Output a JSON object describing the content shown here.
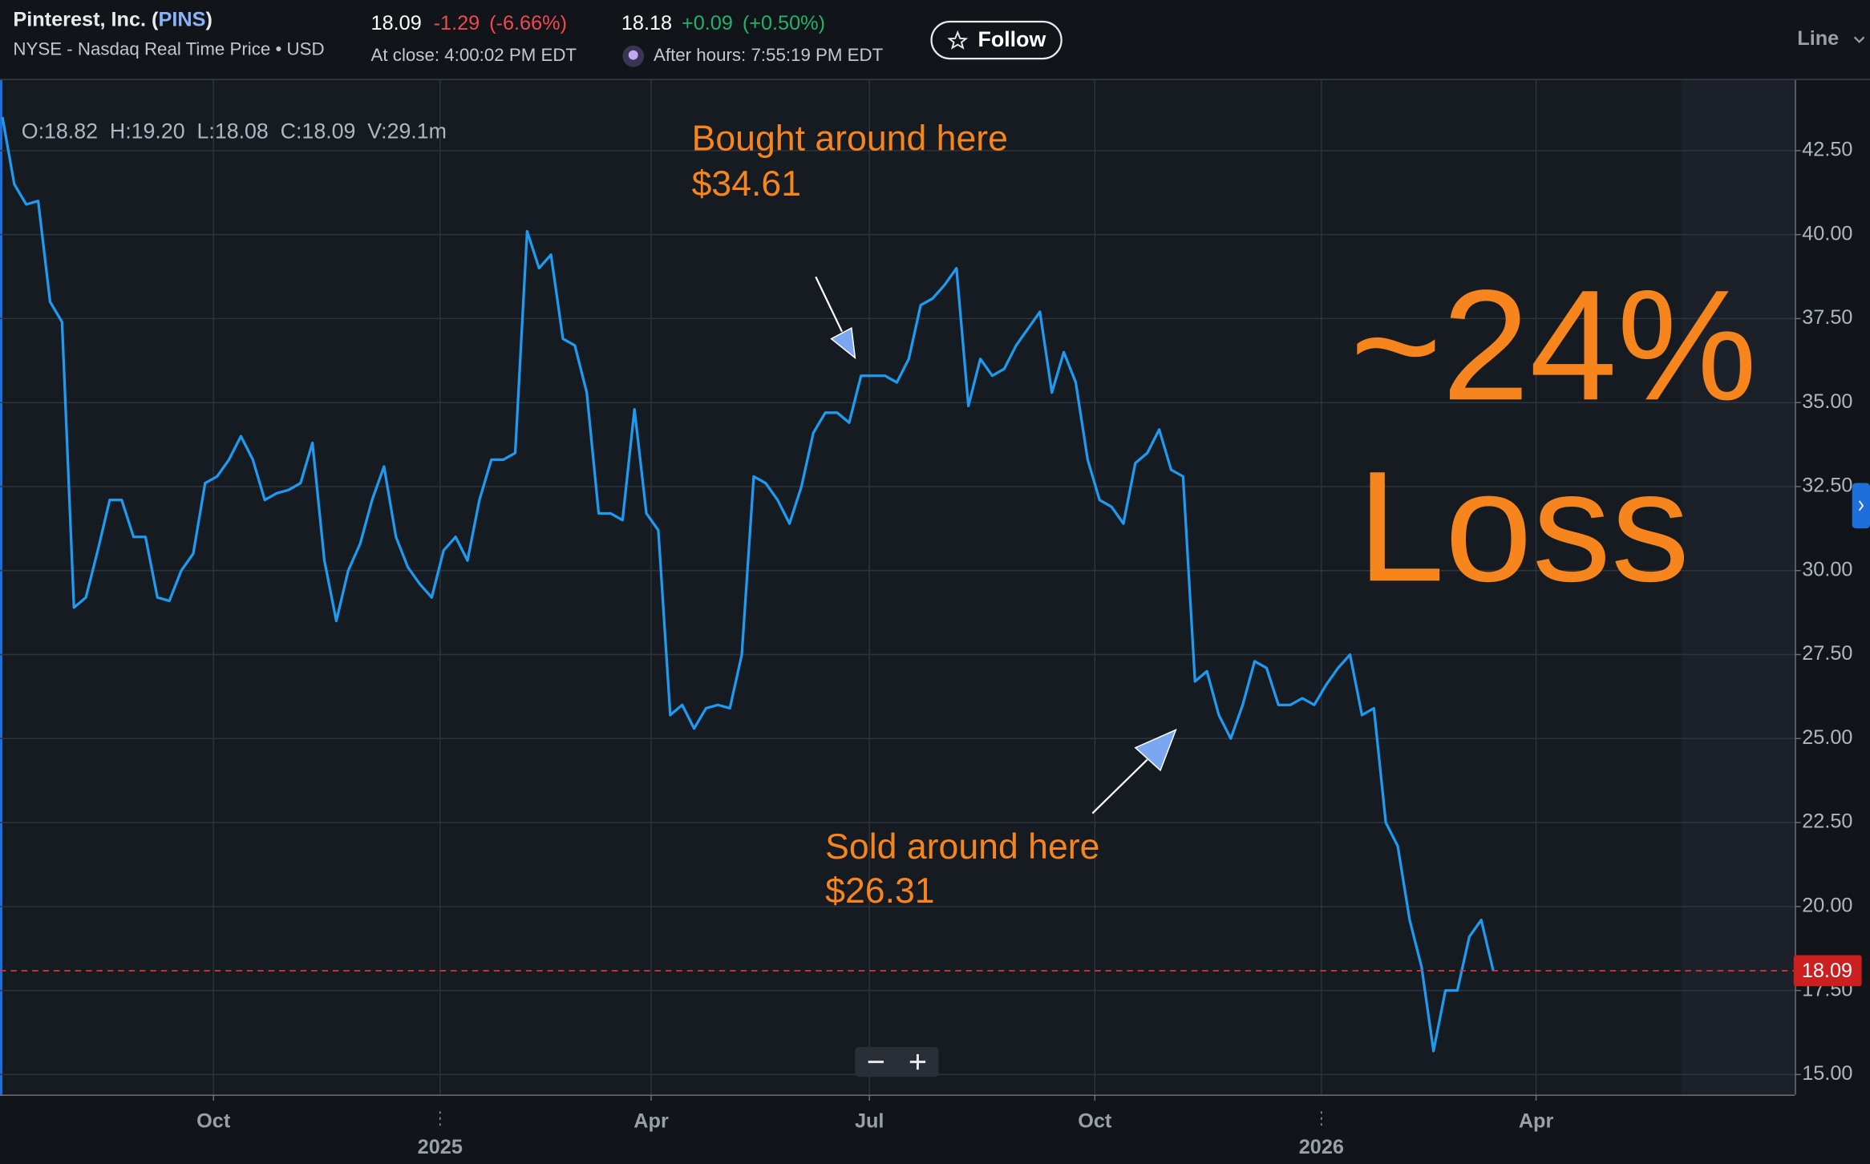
{
  "header": {
    "title": [
      "Pinterest, Inc. (",
      "PINS",
      ")"
    ],
    "subtitle": "NYSE - Nasdaq Real Time Price • USD",
    "close": {
      "price": "18.09",
      "change": "-1.29",
      "percent": "(-6.66%)",
      "time": "At close: 4:00:02 PM EDT"
    },
    "after_hours": {
      "price": "18.18",
      "change": "+0.09",
      "percent": "(+0.50%)",
      "time": "After hours: 7:55:19 PM EDT"
    },
    "follow": "Follow",
    "view": "Line"
  },
  "chart_data": {
    "type": "line",
    "color": "#1e9bf0",
    "ohlc": "O:18.82  H:19.20  L:18.08  C:18.09  V:29.1m",
    "values": [
      43.5,
      41.5,
      40.9,
      41.0,
      38.0,
      37.4,
      28.9,
      29.2,
      30.6,
      32.1,
      32.1,
      31.0,
      31.0,
      29.2,
      29.1,
      30.0,
      30.5,
      32.6,
      32.8,
      33.3,
      34.0,
      33.3,
      32.1,
      32.3,
      32.4,
      32.6,
      33.8,
      30.3,
      28.5,
      30.0,
      30.8,
      32.1,
      33.1,
      31.0,
      30.1,
      29.6,
      29.2,
      30.6,
      31.0,
      30.3,
      32.1,
      33.3,
      33.3,
      33.5,
      40.1,
      39.0,
      39.4,
      36.9,
      36.7,
      35.3,
      31.7,
      31.7,
      31.5,
      34.8,
      31.7,
      31.2,
      25.7,
      26.0,
      25.3,
      25.9,
      26.0,
      25.9,
      27.5,
      32.8,
      32.6,
      32.1,
      31.4,
      32.5,
      34.1,
      34.7,
      34.7,
      34.4,
      35.8,
      35.8,
      35.8,
      35.6,
      36.3,
      37.9,
      38.1,
      38.5,
      39.0,
      34.9,
      36.3,
      35.8,
      36.0,
      36.7,
      37.2,
      37.7,
      35.3,
      36.5,
      35.6,
      33.3,
      32.1,
      31.9,
      31.4,
      33.2,
      33.5,
      34.2,
      33.0,
      32.8,
      26.7,
      27.0,
      25.7,
      25.0,
      26.0,
      27.3,
      27.1,
      26.0,
      26.0,
      26.2,
      26.0,
      26.6,
      27.1,
      27.5,
      25.7,
      25.9,
      22.5,
      21.8,
      19.6,
      18.2,
      15.7,
      17.5,
      17.5,
      19.1,
      19.6,
      18.1
    ],
    "current_price": {
      "value": 18.09,
      "label": "18.09"
    },
    "xlim": [
      -0.2,
      150.3
    ],
    "xticks": [
      {
        "value": 17.7,
        "label": "Oct"
      },
      {
        "value": 54.4,
        "label": "Apr"
      },
      {
        "value": 72.7,
        "label": "Jul"
      },
      {
        "value": 91.6,
        "label": "Oct"
      },
      {
        "value": 128.6,
        "label": "Apr"
      }
    ],
    "year_ticks": [
      {
        "value": 36.7,
        "label": "2025"
      },
      {
        "value": 110.6,
        "label": "2026"
      }
    ],
    "ylim": [
      14.4,
      44.6
    ],
    "yticks": [
      {
        "value": 15,
        "label": "15.00"
      },
      {
        "value": 17.5,
        "label": "17.50"
      },
      {
        "value": 20,
        "label": "20.00"
      },
      {
        "value": 22.5,
        "label": "22.50"
      },
      {
        "value": 25,
        "label": "25.00"
      },
      {
        "value": 27.5,
        "label": "27.50"
      },
      {
        "value": 30,
        "label": "30.00"
      },
      {
        "value": 32.5,
        "label": "32.50"
      },
      {
        "value": 35,
        "label": "35.00"
      },
      {
        "value": 37.5,
        "label": "37.50"
      },
      {
        "value": 40,
        "label": "40.00"
      },
      {
        "value": 42.5,
        "label": "42.50"
      }
    ],
    "grid": true,
    "annotations": {
      "bought": [
        "Bought around here",
        "$34.61"
      ],
      "sold": [
        "Sold around here",
        "$26.31"
      ],
      "loss": [
        "~24%",
        "Loss"
      ]
    }
  }
}
